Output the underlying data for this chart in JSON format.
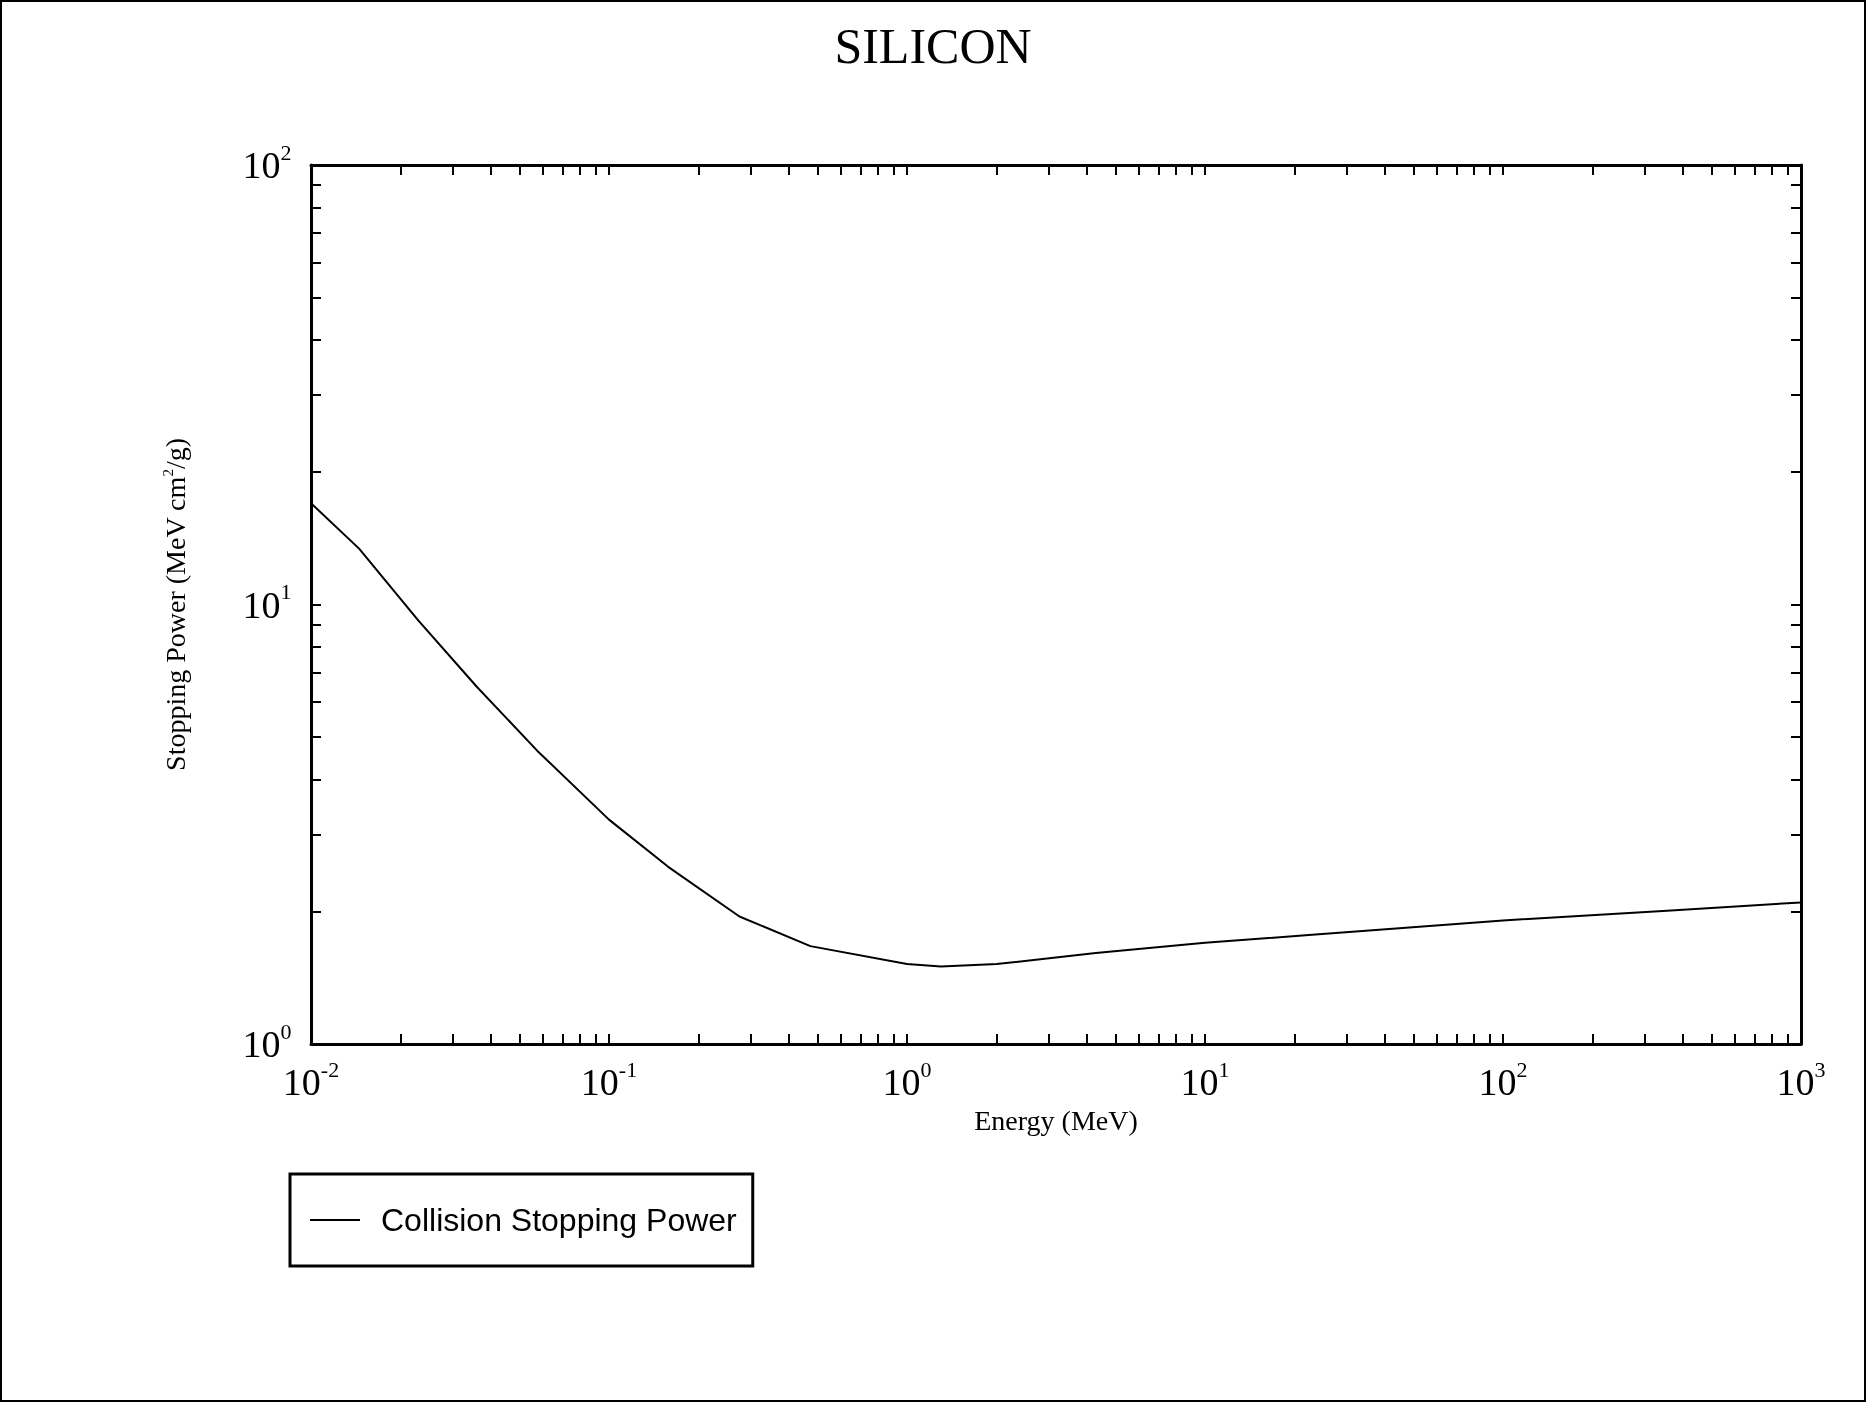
{
  "chart_data": {
    "type": "line",
    "title": "SILICON",
    "xlabel": "Energy (MeV)",
    "ylabel": "Stopping Power (MeV cm$^{2}$/g)",
    "log": "xy",
    "grid": false,
    "legend": "bottom left",
    "marker": "none",
    "line_style": "solid",
    "xlim": [
      0.01,
      1000
    ],
    "ylim": [
      1,
      100
    ],
    "xticks": [
      {
        "value": 0.01,
        "label": "10$^{-2}$"
      },
      {
        "value": 0.02,
        "label": null
      },
      {
        "value": 0.03,
        "label": null
      },
      {
        "value": 0.04,
        "label": null
      },
      {
        "value": 0.05,
        "label": null
      },
      {
        "value": 0.06,
        "label": null
      },
      {
        "value": 0.07,
        "label": null
      },
      {
        "value": 0.08,
        "label": null
      },
      {
        "value": 0.09,
        "label": null
      },
      {
        "value": 0.1,
        "label": "10$^{-1}$"
      },
      {
        "value": 0.2,
        "label": null
      },
      {
        "value": 0.3,
        "label": null
      },
      {
        "value": 0.4,
        "label": null
      },
      {
        "value": 0.5,
        "label": null
      },
      {
        "value": 0.6,
        "label": null
      },
      {
        "value": 0.7,
        "label": null
      },
      {
        "value": 0.8,
        "label": null
      },
      {
        "value": 0.9,
        "label": null
      },
      {
        "value": 1,
        "label": "10$^{0}$"
      },
      {
        "value": 2,
        "label": null
      },
      {
        "value": 3,
        "label": null
      },
      {
        "value": 4,
        "label": null
      },
      {
        "value": 5,
        "label": null
      },
      {
        "value": 6,
        "label": null
      },
      {
        "value": 7,
        "label": null
      },
      {
        "value": 8,
        "label": null
      },
      {
        "value": 9,
        "label": null
      },
      {
        "value": 10,
        "label": "10$^{1}$"
      },
      {
        "value": 20,
        "label": null
      },
      {
        "value": 30,
        "label": null
      },
      {
        "value": 40,
        "label": null
      },
      {
        "value": 50,
        "label": null
      },
      {
        "value": 60,
        "label": null
      },
      {
        "value": 70,
        "label": null
      },
      {
        "value": 80,
        "label": null
      },
      {
        "value": 90,
        "label": null
      },
      {
        "value": 100,
        "label": "10$^{2}$"
      },
      {
        "value": 200,
        "label": null
      },
      {
        "value": 300,
        "label": null
      },
      {
        "value": 400,
        "label": null
      },
      {
        "value": 500,
        "label": null
      },
      {
        "value": 600,
        "label": null
      },
      {
        "value": 700,
        "label": null
      },
      {
        "value": 800,
        "label": null
      },
      {
        "value": 900,
        "label": null
      },
      {
        "value": 1000,
        "label": "10$^{3}$"
      }
    ],
    "yticks": [
      {
        "value": 1,
        "label": "10$^{0}$"
      },
      {
        "value": 2,
        "label": null
      },
      {
        "value": 3,
        "label": null
      },
      {
        "value": 4,
        "label": null
      },
      {
        "value": 5,
        "label": null
      },
      {
        "value": 6,
        "label": null
      },
      {
        "value": 7,
        "label": null
      },
      {
        "value": 8,
        "label": null
      },
      {
        "value": 9,
        "label": null
      },
      {
        "value": 10,
        "label": "10$^{1}$"
      },
      {
        "value": 20,
        "label": null
      },
      {
        "value": 30,
        "label": null
      },
      {
        "value": 40,
        "label": null
      },
      {
        "value": 50,
        "label": null
      },
      {
        "value": 60,
        "label": null
      },
      {
        "value": 70,
        "label": null
      },
      {
        "value": 80,
        "label": null
      },
      {
        "value": 90,
        "label": null
      },
      {
        "value": 100,
        "label": "10$^{2}$"
      }
    ],
    "x": [
      0.01,
      0.0145,
      0.0229,
      0.036,
      0.0574,
      0.1,
      0.158,
      0.274,
      0.474,
      1.0,
      1.3,
      2.0,
      4.3,
      10,
      22.3,
      100,
      355,
      1000
    ],
    "series": [
      {
        "name": "Collision Stopping Power",
        "color": "#000000",
        "values": [
          17.0,
          13.4,
          9.2,
          6.5,
          4.65,
          3.24,
          2.53,
          1.95,
          1.67,
          1.52,
          1.5,
          1.52,
          1.61,
          1.7,
          1.77,
          1.91,
          2.01,
          2.1
        ]
      }
    ]
  }
}
